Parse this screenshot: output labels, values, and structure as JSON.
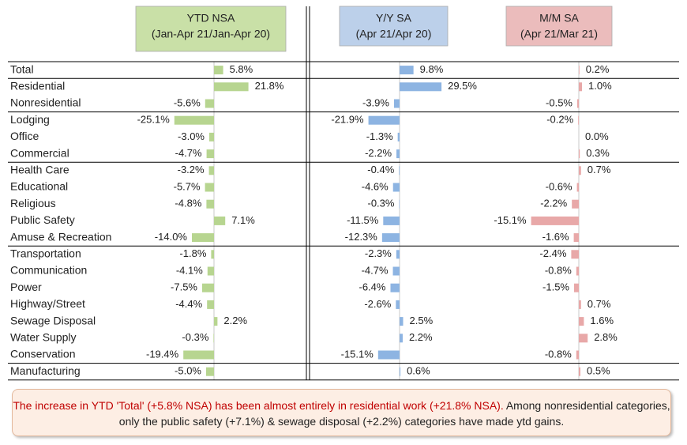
{
  "chart_data": {
    "type": "bar",
    "orientation": "horizontal",
    "categories": [
      "Total",
      "Residential",
      "Nonresidential",
      "Lodging",
      "Office",
      "Commercial",
      "Health Care",
      "Educational",
      "Religious",
      "Public Safety",
      "Amuse & Recreation",
      "Transportation",
      "Communication",
      "Power",
      "Highway/Street",
      "Sewage Disposal",
      "Water Supply",
      "Conservation",
      "Manufacturing"
    ],
    "series": [
      {
        "name": "YTD NSA",
        "period": "(Jan-Apr 21/Jan-Apr 20)",
        "color": "#b7d590",
        "header_color": "#c9e0a7",
        "values": [
          5.8,
          21.8,
          -5.6,
          -25.1,
          -3.0,
          -4.7,
          -3.2,
          -5.7,
          -4.8,
          7.1,
          -14.0,
          -1.8,
          -4.1,
          -7.5,
          -4.4,
          2.2,
          -0.3,
          -19.4,
          -5.0
        ],
        "value_labels": [
          "5.8%",
          "21.8%",
          "-5.6%",
          "-25.1%",
          "-3.0%",
          "-4.7%",
          "-3.2%",
          "-5.7%",
          "-4.8%",
          "7.1%",
          "-14.0%",
          "-1.8%",
          "-4.1%",
          "-7.5%",
          "-4.4%",
          "2.2%",
          "-0.3%",
          "-19.4%",
          "-5.0%"
        ]
      },
      {
        "name": "Y/Y SA",
        "period": "(Apr 21/Apr 20)",
        "color": "#8db4e2",
        "header_color": "#bcd0ea",
        "values": [
          9.8,
          29.5,
          -3.9,
          -21.9,
          -1.3,
          -2.2,
          -0.4,
          -4.6,
          -0.3,
          -11.5,
          -12.3,
          -2.3,
          -4.7,
          -6.4,
          -2.6,
          2.5,
          2.2,
          -15.1,
          0.6
        ],
        "value_labels": [
          "9.8%",
          "29.5%",
          "-3.9%",
          "-21.9%",
          "-1.3%",
          "-2.2%",
          "-0.4%",
          "-4.6%",
          "-0.3%",
          "-11.5%",
          "-12.3%",
          "-2.3%",
          "-4.7%",
          "-6.4%",
          "-2.6%",
          "2.5%",
          "2.2%",
          "-15.1%",
          "0.6%"
        ]
      },
      {
        "name": "M/M SA",
        "period": "(Apr 21/Mar 21)",
        "color": "#e8a8a8",
        "header_color": "#ebbcbc",
        "values": [
          0.2,
          1.0,
          -0.5,
          -0.2,
          0.0,
          0.3,
          0.7,
          -0.6,
          -2.2,
          -15.1,
          -1.6,
          -2.4,
          -0.8,
          -1.5,
          0.7,
          1.6,
          2.8,
          -0.8,
          0.5
        ],
        "value_labels": [
          "0.2%",
          "1.0%",
          "-0.5%",
          "-0.2%",
          "0.0%",
          "0.3%",
          "0.7%",
          "-0.6%",
          "-2.2%",
          "-15.1%",
          "-1.6%",
          "-2.4%",
          "-0.8%",
          "-1.5%",
          "0.7%",
          "1.6%",
          "2.8%",
          "-0.8%",
          "0.5%"
        ]
      }
    ],
    "note": {
      "highlight": "The increase in YTD 'Total' (+5.8% NSA) has been almost entirely in residential work (+21.8% NSA).",
      "text": "Among nonresidential categories, only the public safety (+7.1%) & sewage disposal (+2.2%) categories have made ytd gains."
    }
  }
}
